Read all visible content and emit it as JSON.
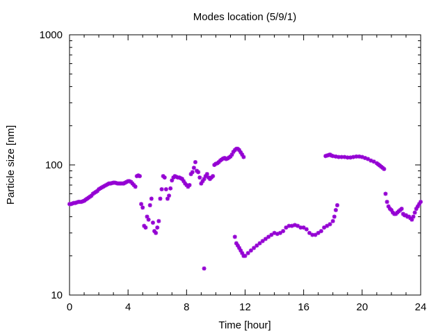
{
  "chart_data": {
    "type": "scatter",
    "title": "Modes location (5/9/1)",
    "xlabel": "Time [hour]",
    "ylabel": "Particle size [nm]",
    "xlim": [
      0,
      24
    ],
    "ylim": [
      10,
      1000
    ],
    "yscale": "log",
    "xticks": [
      0,
      4,
      8,
      12,
      16,
      20,
      24
    ],
    "xtick_labels": [
      "0",
      "4",
      "8",
      "12",
      "16",
      "20",
      "24"
    ],
    "yticks": [
      10,
      100,
      1000
    ],
    "ytick_labels": [
      "10",
      "100",
      "1000"
    ],
    "grid": false,
    "legend": "none",
    "marker_color": "#9400d3",
    "series": [
      {
        "x": [
          0.0,
          0.1,
          0.2,
          0.3,
          0.4,
          0.5,
          0.6,
          0.7,
          0.8,
          0.9,
          1.0,
          1.1,
          1.2,
          1.3,
          1.4,
          1.5,
          1.6,
          1.7,
          1.8,
          1.9,
          2.0,
          2.1,
          2.2,
          2.3,
          2.4,
          2.5,
          2.6,
          2.7,
          2.8,
          2.9,
          3.0,
          3.1,
          3.2,
          3.3,
          3.4,
          3.5,
          3.6,
          3.7,
          3.8,
          3.9,
          4.0,
          4.1,
          4.2,
          4.3,
          4.4,
          4.5,
          4.6,
          4.7,
          4.8,
          4.9,
          5.0,
          5.1,
          5.2,
          5.3,
          5.4,
          5.5,
          5.6,
          5.7,
          5.8,
          5.9,
          6.0,
          6.1,
          6.2,
          6.3,
          6.4,
          6.5,
          6.6,
          6.7,
          6.8,
          6.9,
          7.0,
          7.1,
          7.2,
          7.3,
          7.4,
          7.5,
          7.6,
          7.7,
          7.8,
          7.9,
          8.0,
          8.1,
          8.2,
          8.3,
          8.4,
          8.5,
          8.6,
          8.7,
          8.8,
          8.9,
          9.0,
          9.1,
          9.2,
          9.3,
          9.4,
          9.5,
          9.6,
          9.7,
          9.8,
          9.9,
          10.0,
          10.1,
          10.2,
          10.3,
          10.4,
          10.5,
          10.6,
          10.7,
          10.8,
          10.9,
          11.0,
          11.1,
          11.2,
          11.3,
          11.4,
          11.5,
          11.6,
          11.7,
          11.8,
          11.9
        ],
        "y": [
          50,
          50,
          50.5,
          51,
          51,
          51.5,
          52,
          52,
          52,
          52.5,
          53,
          54,
          55,
          56,
          57,
          58,
          60,
          61,
          62,
          63,
          65,
          66,
          67,
          68,
          69,
          70,
          71,
          72,
          72,
          72.5,
          73,
          73,
          72.5,
          72,
          72,
          72,
          72,
          72,
          73,
          74,
          75,
          75,
          74,
          72,
          70,
          68,
          82,
          83,
          82,
          50,
          47,
          34,
          33,
          40,
          38,
          49,
          55,
          36,
          31,
          30,
          33,
          37,
          55,
          65,
          82,
          80,
          65,
          55,
          58,
          66,
          76,
          80,
          82,
          81,
          80,
          80,
          79,
          78,
          75,
          72,
          70,
          68,
          70,
          85,
          88,
          95,
          105,
          90,
          88,
          80,
          72,
          75,
          78,
          82,
          85,
          80,
          78,
          80,
          82,
          100,
          102,
          103,
          105,
          108,
          110,
          112,
          113,
          111,
          112,
          114,
          116,
          120,
          126,
          130,
          133,
          133,
          130,
          125,
          120,
          115
        ]
      },
      {
        "x": [
          9.2
        ],
        "y": [
          16
        ]
      },
      {
        "x": [
          11.3,
          11.4,
          11.5,
          11.6,
          11.7,
          11.8,
          11.9,
          12.0,
          12.2,
          12.4,
          12.6,
          12.8,
          13.0,
          13.2,
          13.4,
          13.6,
          13.8,
          14.0,
          14.2,
          14.4,
          14.6,
          14.8,
          15.0,
          15.2,
          15.4,
          15.6,
          15.8,
          16.0,
          16.2,
          16.4,
          16.6,
          16.8,
          17.0,
          17.2,
          17.4,
          17.6,
          17.8,
          18.0,
          18.1,
          18.2,
          18.3
        ],
        "y": [
          28,
          25,
          24,
          23,
          22,
          21,
          20,
          20,
          21,
          22,
          23,
          24,
          25,
          26,
          27,
          28,
          29,
          30,
          29.5,
          30,
          31,
          33,
          34,
          34,
          34.5,
          34,
          33,
          33,
          32,
          30,
          29,
          29,
          30,
          31,
          33,
          34,
          35,
          37,
          40,
          45,
          49
        ]
      },
      {
        "x": [
          17.5,
          17.6,
          17.7,
          17.8,
          17.9,
          18.0,
          18.2,
          18.4,
          18.6,
          18.8,
          19.0,
          19.2,
          19.4,
          19.6,
          19.8,
          20.0,
          20.2,
          20.4,
          20.6,
          20.8,
          21.0,
          21.1,
          21.2,
          21.3,
          21.4,
          21.5,
          21.6,
          21.7,
          21.8,
          21.9,
          22.0,
          22.1,
          22.2,
          22.3,
          22.4,
          22.5,
          22.6,
          22.7,
          22.8,
          22.9,
          23.0,
          23.1,
          23.2,
          23.3,
          23.4,
          23.5,
          23.6,
          23.7,
          23.8,
          23.9,
          24.0
        ],
        "y": [
          117,
          118,
          119,
          120,
          118,
          117,
          116,
          115,
          115,
          115,
          114,
          114,
          115,
          116,
          116,
          115,
          113,
          111,
          108,
          106,
          103,
          101,
          99,
          97,
          95,
          93,
          60,
          52,
          48,
          46,
          45,
          43,
          42,
          42,
          43,
          44,
          45,
          46,
          42,
          41,
          41,
          40,
          40,
          39,
          38,
          40,
          43,
          46,
          48,
          50,
          52
        ]
      }
    ]
  }
}
